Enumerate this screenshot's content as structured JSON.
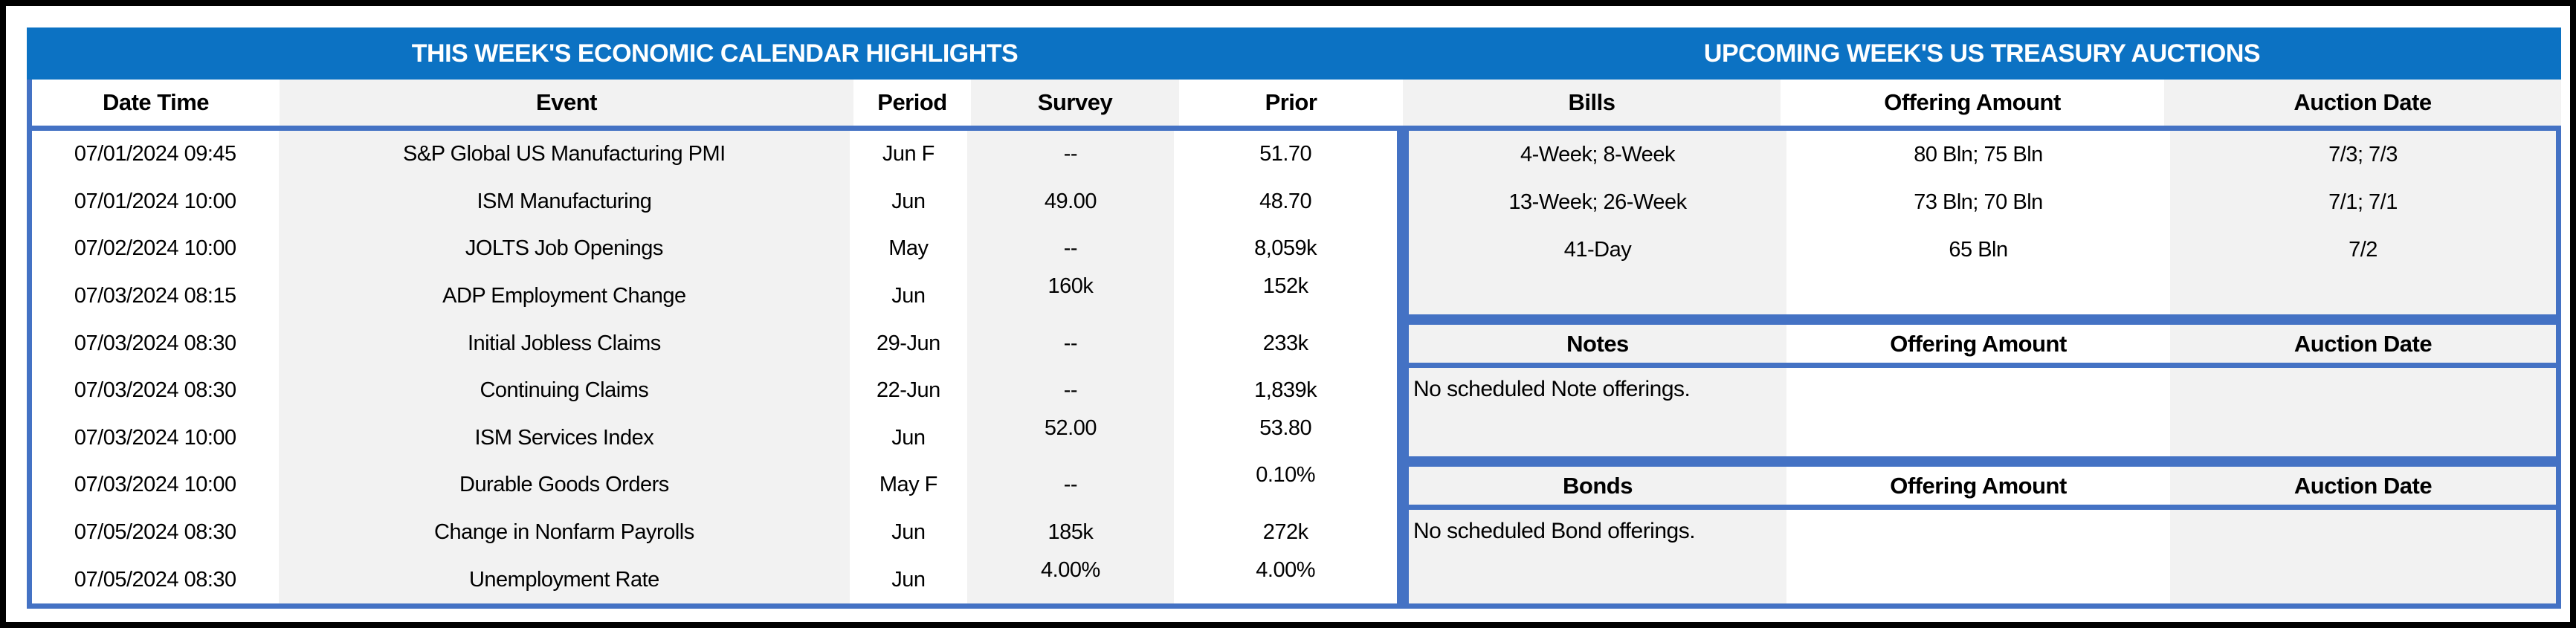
{
  "colors": {
    "title_bar_blue": "#0C72C3",
    "border_blue": "#4472C4",
    "stripe_gray": "#F2F2F2",
    "outer_border": "#000000",
    "title_text": "#FFFFFF",
    "body_text": "#000000"
  },
  "calendar": {
    "title": "THIS WEEK'S ECONOMIC CALENDAR HIGHLIGHTS",
    "columns": [
      "Date Time",
      "Event",
      "Period",
      "Survey",
      "Prior"
    ],
    "rows": [
      {
        "date_time": "07/01/2024 09:45",
        "event": "S&P Global US Manufacturing PMI",
        "period": "Jun F",
        "survey": "--",
        "prior": "51.70"
      },
      {
        "date_time": "07/01/2024 10:00",
        "event": "ISM Manufacturing",
        "period": "Jun",
        "survey": "49.00",
        "prior": "48.70"
      },
      {
        "date_time": "07/02/2024 10:00",
        "event": "JOLTS Job Openings",
        "period": "May",
        "survey": "--",
        "prior": "8,059k"
      },
      {
        "date_time": "07/03/2024 08:15",
        "event": "ADP Employment Change",
        "period": "Jun",
        "survey": "160k",
        "prior": "152k"
      },
      {
        "date_time": "07/03/2024 08:30",
        "event": "Initial Jobless Claims",
        "period": "29-Jun",
        "survey": "--",
        "prior": "233k"
      },
      {
        "date_time": "07/03/2024 08:30",
        "event": "Continuing Claims",
        "period": "22-Jun",
        "survey": "--",
        "prior": "1,839k"
      },
      {
        "date_time": "07/03/2024 10:00",
        "event": "ISM Services Index",
        "period": "Jun",
        "survey": "52.00",
        "prior": "53.80"
      },
      {
        "date_time": "07/03/2024 10:00",
        "event": "Durable Goods Orders",
        "period": "May F",
        "survey": "--",
        "prior": "0.10%"
      },
      {
        "date_time": "07/05/2024 08:30",
        "event": "Change in Nonfarm Payrolls",
        "period": "Jun",
        "survey": "185k",
        "prior": "272k"
      },
      {
        "date_time": "07/05/2024 08:30",
        "event": "Unemployment Rate",
        "period": "Jun",
        "survey": "4.00%",
        "prior": "4.00%"
      }
    ]
  },
  "auctions": {
    "title": "UPCOMING WEEK'S US TREASURY AUCTIONS",
    "bills": {
      "label": "Bills",
      "offering_label": "Offering Amount",
      "auction_label": "Auction Date",
      "rows": [
        {
          "security": "4-Week; 8-Week",
          "offering": "80 Bln; 75 Bln",
          "auction": "7/3; 7/3"
        },
        {
          "security": "13-Week; 26-Week",
          "offering": "73 Bln; 70 Bln",
          "auction": "7/1; 7/1"
        },
        {
          "security": "41-Day",
          "offering": "65 Bln",
          "auction": "7/2"
        }
      ]
    },
    "notes": {
      "label": "Notes",
      "offering_label": "Offering Amount",
      "auction_label": "Auction Date",
      "message": "No scheduled Note offerings."
    },
    "bonds": {
      "label": "Bonds",
      "offering_label": "Offering Amount",
      "auction_label": "Auction Date",
      "message": "No scheduled Bond offerings."
    }
  }
}
